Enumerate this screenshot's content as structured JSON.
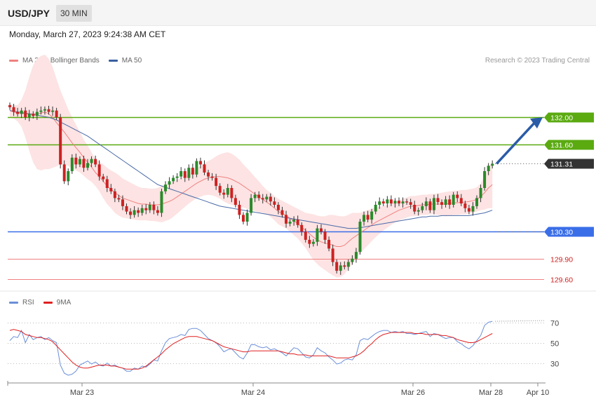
{
  "header": {
    "symbol": "USD/JPY",
    "interval": "30 MIN",
    "datetime": "Monday, March 27, 2023 9:24:38 AM CET"
  },
  "legend_main": [
    {
      "label": "MA 20 + Bollinger Bands",
      "color": "#f08080"
    },
    {
      "label": "MA 50",
      "color": "#3a5f9f"
    }
  ],
  "legend_rsi": [
    {
      "label": "RSI",
      "color": "#6a8fd8"
    },
    {
      "label": "9MA",
      "color": "#e02020"
    }
  ],
  "credit": "Research © 2023 Trading Central",
  "colors": {
    "bull": "#2a8a2a",
    "bear": "#cc2222",
    "band_fill": "#fde3e3",
    "ma20": "#f08080",
    "ma50": "#4a6aa8",
    "resistance": "#5aaa10",
    "pivot": "#3a6ee8",
    "support": "#f08080",
    "last_price": "#333333",
    "rsi": "#6a8fd8",
    "rsi_ma": "#e02020",
    "target_arrow": "#2a5ca8"
  },
  "chart_data": [
    {
      "type": "candlestick",
      "title": "",
      "x_ticks": [
        "Mar 23",
        "Mar 24",
        "Mar 26",
        "Mar 28",
        "Apr 10"
      ],
      "y_range": [
        129.45,
        132.7
      ],
      "levels": [
        {
          "label": "132.00",
          "value": 132.0,
          "kind": "resistance"
        },
        {
          "label": "131.60",
          "value": 131.6,
          "kind": "resistance"
        },
        {
          "label": "131.31",
          "value": 131.31,
          "kind": "last_price"
        },
        {
          "label": "130.30",
          "value": 130.3,
          "kind": "pivot"
        },
        {
          "label": "129.90",
          "value": 129.9,
          "kind": "support"
        },
        {
          "label": "129.60",
          "value": 129.6,
          "kind": "support"
        }
      ],
      "close": [
        132.15,
        132.08,
        132.05,
        132.1,
        132.0,
        132.05,
        132.02,
        132.08,
        132.1,
        132.12,
        132.08,
        132.1,
        132.0,
        131.3,
        131.05,
        131.2,
        131.4,
        131.3,
        131.38,
        131.25,
        131.32,
        131.38,
        131.3,
        131.12,
        131.08,
        130.95,
        130.9,
        130.8,
        130.78,
        130.68,
        130.6,
        130.55,
        130.62,
        130.58,
        130.65,
        130.62,
        130.7,
        130.62,
        130.58,
        130.9,
        131.0,
        131.05,
        131.1,
        131.12,
        131.2,
        131.1,
        131.25,
        131.15,
        131.35,
        131.3,
        131.18,
        131.12,
        131.1,
        130.98,
        130.88,
        130.85,
        130.95,
        130.8,
        130.7,
        130.55,
        130.45,
        130.58,
        130.8,
        130.85,
        130.8,
        130.78,
        130.82,
        130.75,
        130.7,
        130.62,
        130.55,
        130.42,
        130.45,
        130.48,
        130.4,
        130.3,
        130.18,
        130.12,
        130.15,
        130.35,
        130.3,
        130.18,
        130.05,
        129.85,
        129.72,
        129.8,
        129.78,
        129.85,
        129.9,
        130.0,
        130.45,
        130.55,
        130.48,
        130.6,
        130.7,
        130.75,
        130.72,
        130.78,
        130.72,
        130.76,
        130.72,
        130.75,
        130.74,
        130.7,
        130.6,
        130.62,
        130.68,
        130.75,
        130.62,
        130.8,
        130.74,
        130.7,
        130.78,
        130.7,
        130.85,
        130.8,
        130.72,
        130.65,
        130.6,
        130.68,
        130.8,
        130.95,
        131.2,
        131.28,
        131.31
      ],
      "ma20": [
        132.1,
        132.08,
        132.06,
        132.06,
        132.05,
        132.05,
        132.05,
        132.05,
        132.06,
        132.08,
        132.05,
        132.0,
        131.92,
        131.85,
        131.78,
        131.7,
        131.62,
        131.55,
        131.48,
        131.4,
        131.33,
        131.26,
        131.18,
        131.12,
        131.05,
        130.98,
        130.93,
        130.88,
        130.84,
        130.8,
        130.78,
        130.76,
        130.74,
        130.72,
        130.71,
        130.71,
        130.7,
        130.7,
        130.7,
        130.71,
        130.73,
        130.75,
        130.78,
        130.82,
        130.86,
        130.9,
        130.94,
        130.98,
        131.02,
        131.05,
        131.08,
        131.1,
        131.11,
        131.12,
        131.12,
        131.11,
        131.1,
        131.08,
        131.05,
        131.02,
        130.98,
        130.94,
        130.9,
        130.86,
        130.82,
        130.78,
        130.74,
        130.7,
        130.65,
        130.6,
        130.57,
        130.54,
        130.5,
        130.46,
        130.42,
        130.37,
        130.32,
        130.27,
        130.22,
        130.18,
        130.15,
        130.13,
        130.12,
        130.1,
        130.08,
        130.08,
        130.1,
        130.15,
        130.2,
        130.24,
        130.28,
        130.32,
        130.36,
        130.4,
        130.44,
        130.47,
        130.5,
        130.53,
        130.56,
        130.59,
        130.62,
        130.64,
        130.66,
        130.68,
        130.68,
        130.69,
        130.7,
        130.7,
        130.71,
        130.71,
        130.71,
        130.71,
        130.71,
        130.72,
        130.73,
        130.73,
        130.74,
        130.74,
        130.75,
        130.76,
        130.78,
        130.82,
        130.88,
        130.95,
        131.0
      ],
      "ma50": [
        132.1,
        132.09,
        132.08,
        132.07,
        132.06,
        132.05,
        132.04,
        132.03,
        132.02,
        132.01,
        132.0,
        131.98,
        131.96,
        131.93,
        131.9,
        131.87,
        131.84,
        131.81,
        131.78,
        131.75,
        131.72,
        131.68,
        131.64,
        131.6,
        131.56,
        131.52,
        131.48,
        131.44,
        131.4,
        131.36,
        131.32,
        131.28,
        131.24,
        131.2,
        131.16,
        131.12,
        131.08,
        131.04,
        131.0,
        130.98,
        130.96,
        130.94,
        130.92,
        130.9,
        130.88,
        130.86,
        130.84,
        130.82,
        130.8,
        130.78,
        130.76,
        130.74,
        130.72,
        130.7,
        130.68,
        130.67,
        130.66,
        130.65,
        130.64,
        130.63,
        130.62,
        130.61,
        130.6,
        130.59,
        130.58,
        130.57,
        130.56,
        130.55,
        130.54,
        130.53,
        130.52,
        130.51,
        130.5,
        130.49,
        130.48,
        130.47,
        130.46,
        130.45,
        130.44,
        130.43,
        130.42,
        130.41,
        130.4,
        130.39,
        130.38,
        130.37,
        130.36,
        130.35,
        130.35,
        130.35,
        130.36,
        130.37,
        130.38,
        130.39,
        130.4,
        130.41,
        130.42,
        130.43,
        130.44,
        130.45,
        130.46,
        130.47,
        130.48,
        130.49,
        130.5,
        130.51,
        130.52,
        130.52,
        130.53,
        130.53,
        130.53,
        130.54,
        130.54,
        130.54,
        130.54,
        130.54,
        130.54,
        130.54,
        130.54,
        130.55,
        130.56,
        130.57,
        130.58,
        130.6,
        130.62
      ],
      "band_width": [
        0.1,
        0.1,
        0.12,
        0.2,
        0.35,
        0.55,
        0.72,
        0.82,
        0.85,
        0.85,
        0.82,
        0.75,
        0.65,
        0.55,
        0.48,
        0.42,
        0.38,
        0.34,
        0.3,
        0.27,
        0.25,
        0.22,
        0.2,
        0.22,
        0.25,
        0.27,
        0.28,
        0.3,
        0.3,
        0.29,
        0.28,
        0.27,
        0.26,
        0.25,
        0.24,
        0.24,
        0.24,
        0.24,
        0.25,
        0.27,
        0.27,
        0.27,
        0.26,
        0.25,
        0.24,
        0.23,
        0.22,
        0.22,
        0.22,
        0.23,
        0.24,
        0.25,
        0.27,
        0.3,
        0.33,
        0.36,
        0.38,
        0.38,
        0.37,
        0.35,
        0.32,
        0.3,
        0.28,
        0.25,
        0.23,
        0.2,
        0.18,
        0.18,
        0.18,
        0.19,
        0.19,
        0.19,
        0.2,
        0.21,
        0.22,
        0.24,
        0.26,
        0.3,
        0.34,
        0.36,
        0.38,
        0.4,
        0.43,
        0.45,
        0.46,
        0.45,
        0.43,
        0.4,
        0.38,
        0.34,
        0.3,
        0.28,
        0.26,
        0.24,
        0.22,
        0.2,
        0.18,
        0.17,
        0.16,
        0.15,
        0.15,
        0.15,
        0.15,
        0.15,
        0.15,
        0.15,
        0.15,
        0.15,
        0.15,
        0.15,
        0.16,
        0.17,
        0.18,
        0.18,
        0.18,
        0.18,
        0.18,
        0.18,
        0.18,
        0.18,
        0.18,
        0.2,
        0.25,
        0.3,
        0.35
      ]
    },
    {
      "type": "line",
      "title": "",
      "y_ticks": [
        70,
        50,
        30
      ],
      "y_range": [
        18,
        80
      ],
      "series": [
        {
          "name": "RSI",
          "values": [
            52,
            56,
            55,
            62,
            50,
            58,
            53,
            55,
            56,
            53,
            55,
            52,
            50,
            28,
            20,
            18,
            19,
            22,
            28,
            30,
            32,
            29,
            31,
            28,
            27,
            30,
            27,
            28,
            26,
            25,
            22,
            22,
            25,
            24,
            27,
            26,
            29,
            33,
            32,
            42,
            50,
            54,
            55,
            56,
            58,
            57,
            63,
            64,
            64,
            62,
            58,
            54,
            52,
            50,
            46,
            41,
            43,
            44,
            40,
            36,
            34,
            40,
            48,
            48,
            46,
            45,
            46,
            43,
            44,
            42,
            40,
            37,
            41,
            45,
            44,
            40,
            36,
            35,
            38,
            45,
            42,
            40,
            36,
            33,
            29,
            30,
            33,
            34,
            33,
            38,
            52,
            54,
            53,
            56,
            59,
            61,
            62,
            62,
            60,
            61,
            60,
            61,
            59,
            59,
            58,
            59,
            60,
            61,
            56,
            59,
            58,
            56,
            54,
            55,
            55,
            51,
            49,
            46,
            44,
            47,
            52,
            57,
            67,
            70,
            71
          ]
        },
        {
          "name": "9MA",
          "values": [
            62,
            63,
            62,
            61,
            58,
            57,
            56,
            55,
            55,
            54,
            53,
            51,
            47,
            43,
            39,
            35,
            31,
            28,
            26,
            25,
            25,
            26,
            27,
            28,
            28,
            28,
            27,
            27,
            26,
            25,
            24,
            24,
            24,
            24,
            25,
            27,
            30,
            33,
            36,
            39,
            43,
            46,
            49,
            51,
            53,
            55,
            56,
            56,
            56,
            55,
            54,
            53,
            52,
            50,
            48,
            46,
            45,
            44,
            43,
            42,
            41,
            41,
            42,
            42,
            42,
            42,
            42,
            42,
            42,
            42,
            41,
            40,
            39,
            39,
            38,
            38,
            38,
            37,
            37,
            37,
            37,
            37,
            37,
            36,
            35,
            35,
            35,
            35,
            36,
            37,
            39,
            42,
            46,
            49,
            53,
            56,
            58,
            59,
            60,
            60,
            60,
            60,
            60,
            60,
            59,
            59,
            59,
            58,
            58,
            58,
            58,
            57,
            57,
            56,
            55,
            53,
            52,
            51,
            50,
            50,
            51,
            53,
            55,
            57,
            59
          ]
        }
      ],
      "rsi_last_label": ""
    }
  ]
}
